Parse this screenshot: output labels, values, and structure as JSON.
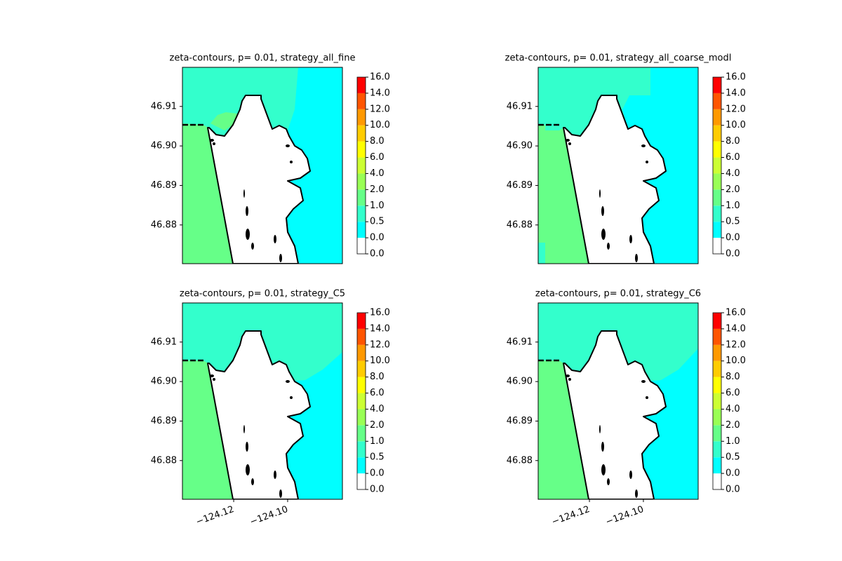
{
  "chart_data": [
    {
      "type": "contour-map",
      "title": "zeta-contours, p= 0.01, strategy_all_fine",
      "xlim": [
        -124.139,
        -124.0797
      ],
      "ylim": [
        46.8702,
        46.9199
      ],
      "yticks": [
        {
          "value": 46.88,
          "label": "46.88"
        },
        {
          "value": 46.89,
          "label": "46.89"
        },
        {
          "value": 46.9,
          "label": "46.90"
        },
        {
          "value": 46.91,
          "label": "46.91"
        }
      ],
      "colorbar": {
        "boundaries": [
          {
            "value": 0,
            "label": "0.0"
          },
          {
            "value": 0,
            "label": "0.0"
          },
          {
            "value": 0.5,
            "label": "0.5"
          },
          {
            "value": 1,
            "label": "1.0"
          },
          {
            "value": 2,
            "label": "2.0"
          },
          {
            "value": 4,
            "label": "4.0"
          },
          {
            "value": 6,
            "label": "6.0"
          },
          {
            "value": 8,
            "label": "8.0"
          },
          {
            "value": 10,
            "label": "10.0"
          },
          {
            "value": 12,
            "label": "12.0"
          },
          {
            "value": 14,
            "label": "14.0"
          },
          {
            "value": 16,
            "label": "16.0"
          }
        ],
        "colors": [
          "#ffffff",
          "#00ffff",
          "#33ffcc",
          "#66ff88",
          "#99ff55",
          "#ccff33",
          "#ffff00",
          "#ffcc00",
          "#ff9900",
          "#ff5500",
          "#ff0000"
        ]
      }
    },
    {
      "type": "contour-map",
      "title": "zeta-contours, p= 0.01, strategy_all_coarse_modl",
      "xlim": [
        -124.139,
        -124.0797
      ],
      "ylim": [
        46.8702,
        46.9199
      ],
      "yticks": [
        {
          "value": 46.88,
          "label": "46.88"
        },
        {
          "value": 46.89,
          "label": "46.89"
        },
        {
          "value": 46.9,
          "label": "46.90"
        },
        {
          "value": 46.91,
          "label": "46.91"
        }
      ],
      "colorbar": {
        "boundaries": [
          {
            "value": 0,
            "label": "0.0"
          },
          {
            "value": 0,
            "label": "0.0"
          },
          {
            "value": 0.5,
            "label": "0.5"
          },
          {
            "value": 1,
            "label": "1.0"
          },
          {
            "value": 2,
            "label": "2.0"
          },
          {
            "value": 4,
            "label": "4.0"
          },
          {
            "value": 6,
            "label": "6.0"
          },
          {
            "value": 8,
            "label": "8.0"
          },
          {
            "value": 10,
            "label": "10.0"
          },
          {
            "value": 12,
            "label": "12.0"
          },
          {
            "value": 14,
            "label": "14.0"
          },
          {
            "value": 16,
            "label": "16.0"
          }
        ],
        "colors": [
          "#ffffff",
          "#00ffff",
          "#33ffcc",
          "#66ff88",
          "#99ff55",
          "#ccff33",
          "#ffff00",
          "#ffcc00",
          "#ff9900",
          "#ff5500",
          "#ff0000"
        ]
      }
    },
    {
      "type": "contour-map",
      "title": "zeta-contours, p= 0.01, strategy_C5",
      "xlim": [
        -124.139,
        -124.0797
      ],
      "ylim": [
        46.8702,
        46.9199
      ],
      "xticks": [
        {
          "value": -124.12,
          "label": "−124.12"
        },
        {
          "value": -124.1,
          "label": "−124.10"
        }
      ],
      "yticks": [
        {
          "value": 46.88,
          "label": "46.88"
        },
        {
          "value": 46.89,
          "label": "46.89"
        },
        {
          "value": 46.9,
          "label": "46.90"
        },
        {
          "value": 46.91,
          "label": "46.91"
        }
      ],
      "colorbar": {
        "boundaries": [
          {
            "value": 0,
            "label": "0.0"
          },
          {
            "value": 0,
            "label": "0.0"
          },
          {
            "value": 0.5,
            "label": "0.5"
          },
          {
            "value": 1,
            "label": "1.0"
          },
          {
            "value": 2,
            "label": "2.0"
          },
          {
            "value": 4,
            "label": "4.0"
          },
          {
            "value": 6,
            "label": "6.0"
          },
          {
            "value": 8,
            "label": "8.0"
          },
          {
            "value": 10,
            "label": "10.0"
          },
          {
            "value": 12,
            "label": "12.0"
          },
          {
            "value": 14,
            "label": "14.0"
          },
          {
            "value": 16,
            "label": "16.0"
          }
        ],
        "colors": [
          "#ffffff",
          "#00ffff",
          "#33ffcc",
          "#66ff88",
          "#99ff55",
          "#ccff33",
          "#ffff00",
          "#ffcc00",
          "#ff9900",
          "#ff5500",
          "#ff0000"
        ]
      }
    },
    {
      "type": "contour-map",
      "title": "zeta-contours, p= 0.01, strategy_C6",
      "xlim": [
        -124.139,
        -124.0797
      ],
      "ylim": [
        46.8702,
        46.9199
      ],
      "xticks": [
        {
          "value": -124.12,
          "label": "−124.12"
        },
        {
          "value": -124.1,
          "label": "−124.10"
        }
      ],
      "yticks": [
        {
          "value": 46.88,
          "label": "46.88"
        },
        {
          "value": 46.89,
          "label": "46.89"
        },
        {
          "value": 46.9,
          "label": "46.90"
        },
        {
          "value": 46.91,
          "label": "46.91"
        }
      ],
      "colorbar": {
        "boundaries": [
          {
            "value": 0,
            "label": "0.0"
          },
          {
            "value": 0,
            "label": "0.0"
          },
          {
            "value": 0.5,
            "label": "0.5"
          },
          {
            "value": 1,
            "label": "1.0"
          },
          {
            "value": 2,
            "label": "2.0"
          },
          {
            "value": 4,
            "label": "4.0"
          },
          {
            "value": 6,
            "label": "6.0"
          },
          {
            "value": 8,
            "label": "8.0"
          },
          {
            "value": 10,
            "label": "10.0"
          },
          {
            "value": 12,
            "label": "12.0"
          },
          {
            "value": 14,
            "label": "14.0"
          },
          {
            "value": 16,
            "label": "16.0"
          }
        ],
        "colors": [
          "#ffffff",
          "#00ffff",
          "#33ffcc",
          "#66ff88",
          "#99ff55",
          "#ccff33",
          "#ffff00",
          "#ffcc00",
          "#ff9900",
          "#ff5500",
          "#ff0000"
        ]
      }
    }
  ]
}
